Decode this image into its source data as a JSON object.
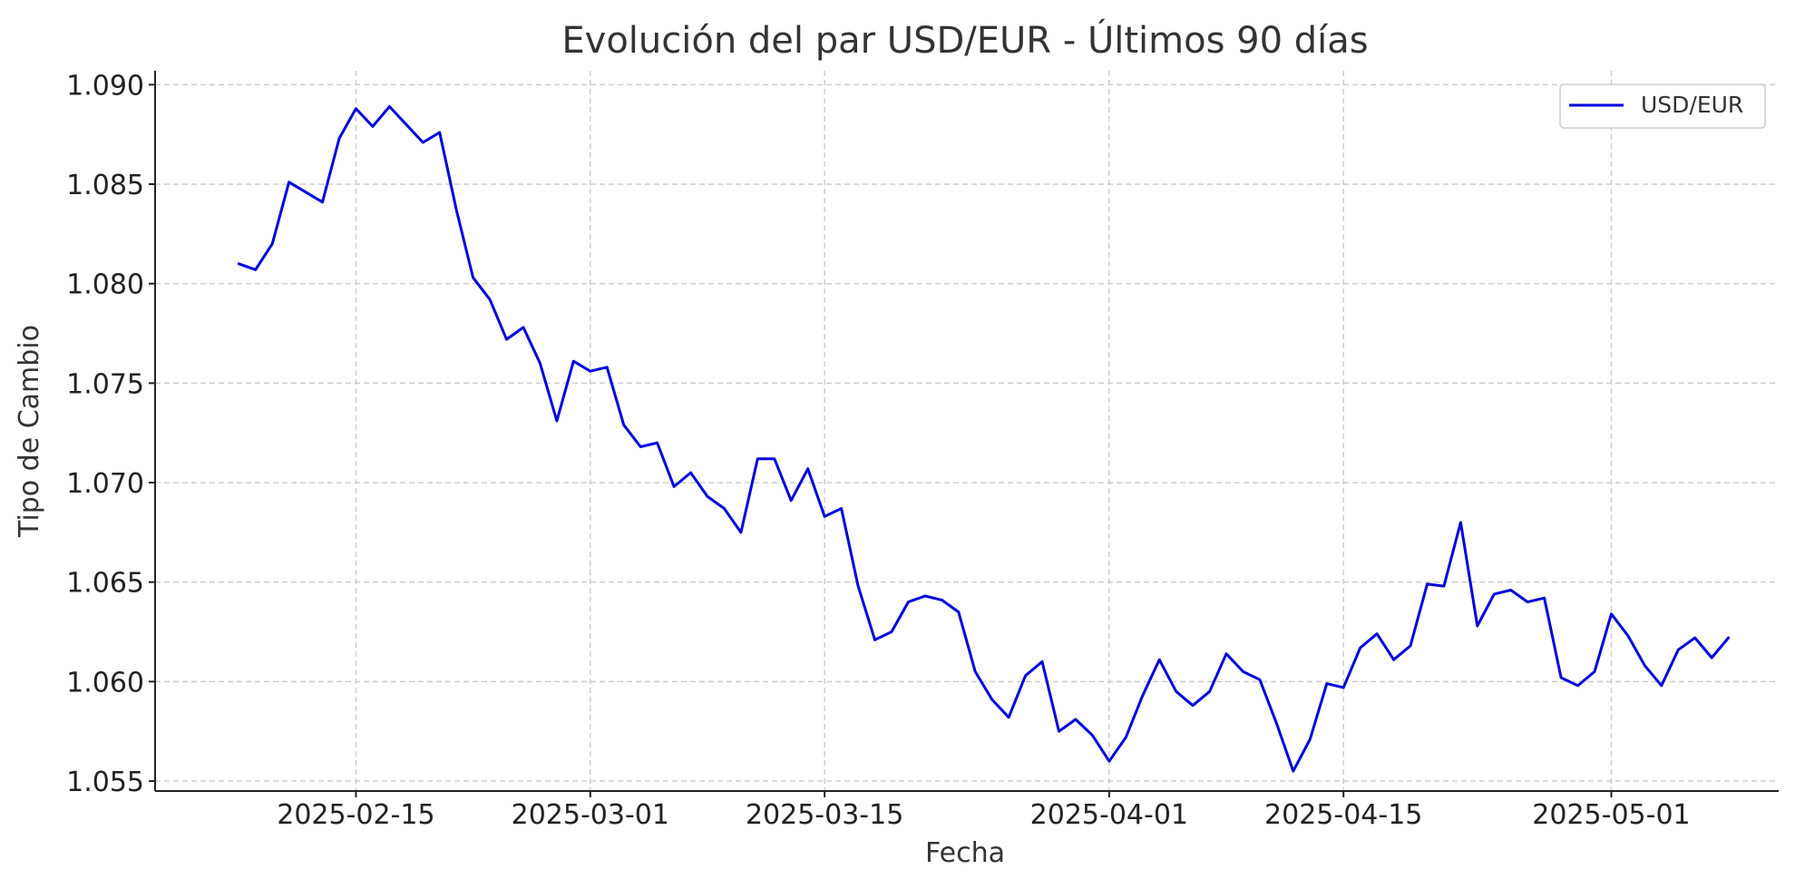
{
  "chart_data": {
    "type": "line",
    "title": "Evolución del par USD/EUR - Últimos 90 días",
    "xlabel": "Fecha",
    "ylabel": "Tipo de Cambio",
    "x_tick_labels": [
      "2025-02-15",
      "2025-03-01",
      "2025-03-15",
      "2025-04-01",
      "2025-04-15",
      "2025-05-01"
    ],
    "y_tick_labels": [
      "1.055",
      "1.060",
      "1.065",
      "1.070",
      "1.075",
      "1.080",
      "1.085",
      "1.090"
    ],
    "ylim": [
      1.0545,
      1.0907
    ],
    "xlim": [
      "2025-02-03",
      "2025-05-11"
    ],
    "grid": true,
    "legend_position": "top-right",
    "line_color": "#0000dd",
    "series": [
      {
        "name": "USD/EUR",
        "x": [
          "2025-02-08",
          "2025-02-09",
          "2025-02-10",
          "2025-02-11",
          "2025-02-12",
          "2025-02-13",
          "2025-02-14",
          "2025-02-15",
          "2025-02-16",
          "2025-02-17",
          "2025-02-18",
          "2025-02-19",
          "2025-02-20",
          "2025-02-21",
          "2025-02-22",
          "2025-02-23",
          "2025-02-24",
          "2025-02-25",
          "2025-02-26",
          "2025-02-27",
          "2025-02-28",
          "2025-03-01",
          "2025-03-02",
          "2025-03-03",
          "2025-03-04",
          "2025-03-05",
          "2025-03-06",
          "2025-03-07",
          "2025-03-08",
          "2025-03-09",
          "2025-03-10",
          "2025-03-11",
          "2025-03-12",
          "2025-03-13",
          "2025-03-14",
          "2025-03-15",
          "2025-03-16",
          "2025-03-17",
          "2025-03-18",
          "2025-03-19",
          "2025-03-20",
          "2025-03-21",
          "2025-03-22",
          "2025-03-23",
          "2025-03-24",
          "2025-03-25",
          "2025-03-26",
          "2025-03-27",
          "2025-03-28",
          "2025-03-29",
          "2025-03-30",
          "2025-03-31",
          "2025-04-01",
          "2025-04-02",
          "2025-04-03",
          "2025-04-04",
          "2025-04-05",
          "2025-04-06",
          "2025-04-07",
          "2025-04-08",
          "2025-04-09",
          "2025-04-10",
          "2025-04-11",
          "2025-04-12",
          "2025-04-13",
          "2025-04-14",
          "2025-04-15",
          "2025-04-16",
          "2025-04-17",
          "2025-04-18",
          "2025-04-19",
          "2025-04-20",
          "2025-04-21",
          "2025-04-22",
          "2025-04-23",
          "2025-04-24",
          "2025-04-25",
          "2025-04-26",
          "2025-04-27",
          "2025-04-28",
          "2025-04-29",
          "2025-04-30",
          "2025-05-01",
          "2025-05-02",
          "2025-05-03",
          "2025-05-04",
          "2025-05-05",
          "2025-05-06",
          "2025-05-07",
          "2025-05-08"
        ],
        "values": [
          1.081,
          1.0807,
          1.082,
          1.0851,
          1.0846,
          1.0841,
          1.0873,
          1.0888,
          1.0879,
          1.0889,
          1.088,
          1.0871,
          1.0876,
          1.0837,
          1.0803,
          1.0792,
          1.0772,
          1.0778,
          1.076,
          1.0731,
          1.0761,
          1.0756,
          1.0758,
          1.0729,
          1.0718,
          1.072,
          1.0698,
          1.0705,
          1.0693,
          1.0687,
          1.0675,
          1.0712,
          1.0712,
          1.0691,
          1.0707,
          1.0683,
          1.0687,
          1.0648,
          1.0621,
          1.0625,
          1.064,
          1.0643,
          1.0641,
          1.0635,
          1.0605,
          1.0591,
          1.0582,
          1.0603,
          1.061,
          1.0575,
          1.0581,
          1.0573,
          1.056,
          1.0572,
          1.0593,
          1.0611,
          1.0595,
          1.0588,
          1.0595,
          1.0614,
          1.0605,
          1.0601,
          1.0579,
          1.0555,
          1.0571,
          1.0599,
          1.0597,
          1.0617,
          1.0624,
          1.0611,
          1.0618,
          1.0649,
          1.0648,
          1.068,
          1.0628,
          1.0644,
          1.0646,
          1.064,
          1.0642,
          1.0602,
          1.0598,
          1.0605,
          1.0634,
          1.0623,
          1.0608,
          1.0598,
          1.0616,
          1.0622,
          1.0612,
          1.0622
        ]
      }
    ]
  }
}
